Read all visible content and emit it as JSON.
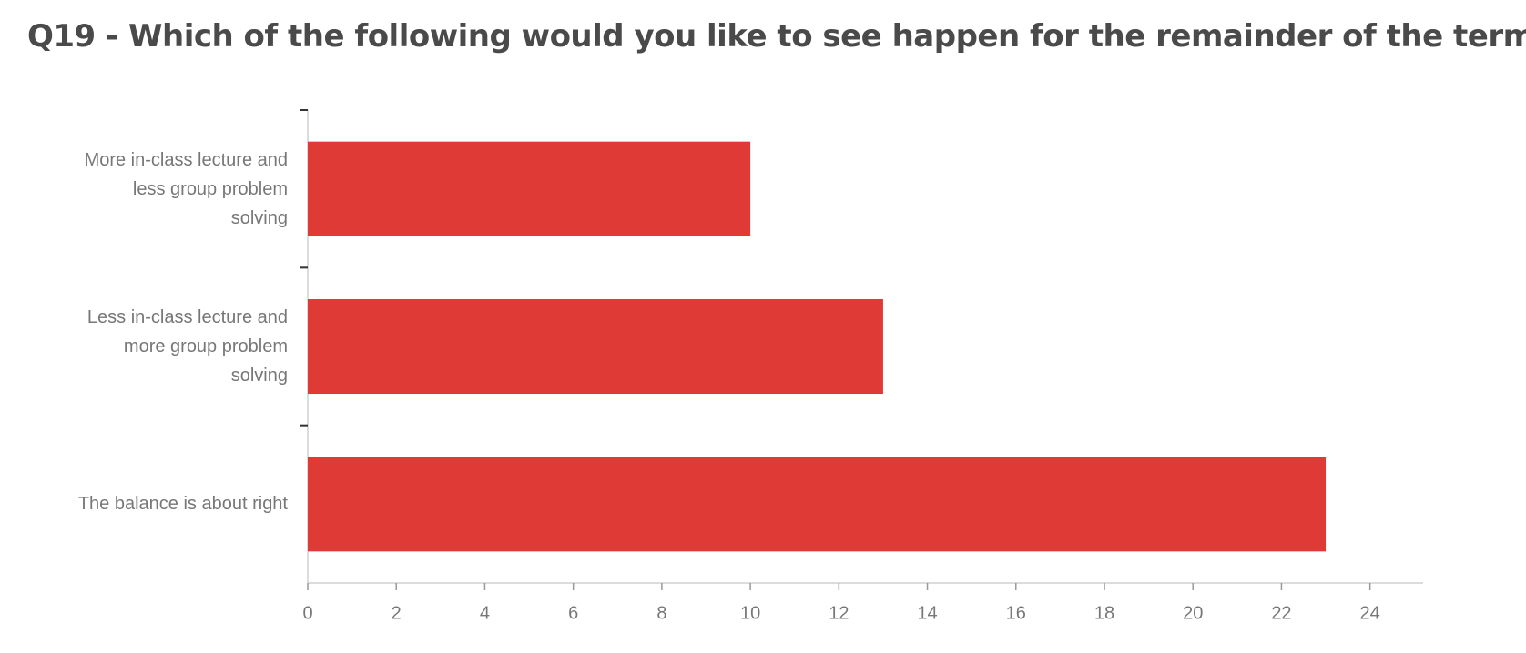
{
  "chart_data": {
    "type": "bar",
    "orientation": "horizontal",
    "title": "Q19 - Which of the following would you like to see happen for the remainder of the term:",
    "categories": [
      "More in-class lecture and less group problem solving",
      "Less in-class lecture and more group problem solving",
      "The balance is about right"
    ],
    "values": [
      10,
      13,
      23
    ],
    "color": "#e03a36",
    "xlim": [
      0,
      25.2
    ],
    "xticks": [
      0,
      2,
      4,
      6,
      8,
      10,
      12,
      14,
      16,
      18,
      20,
      22,
      24
    ],
    "grid": false
  }
}
